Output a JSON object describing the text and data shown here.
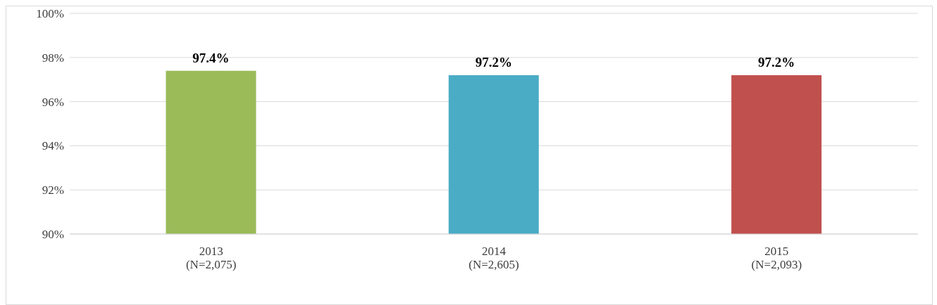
{
  "chart_data": {
    "type": "bar",
    "categories": [
      "2013\n(N=2,075)",
      "2014\n(N=2,605)",
      "2015\n(N=2,093)"
    ],
    "values": [
      97.4,
      97.2,
      97.2
    ],
    "colors": [
      "#9bbb59",
      "#4bacc6",
      "#c0504d"
    ],
    "value_labels": [
      "97.4%",
      "97.2%",
      "97.2%"
    ],
    "ylim": [
      90,
      100
    ],
    "yticks": [
      {
        "value": 90,
        "label": "90%"
      },
      {
        "value": 92,
        "label": "92%"
      },
      {
        "value": 94,
        "label": "94%"
      },
      {
        "value": 96,
        "label": "96%"
      },
      {
        "value": 98,
        "label": "98%"
      },
      {
        "value": 100,
        "label": "100%"
      }
    ],
    "grid": "y"
  }
}
